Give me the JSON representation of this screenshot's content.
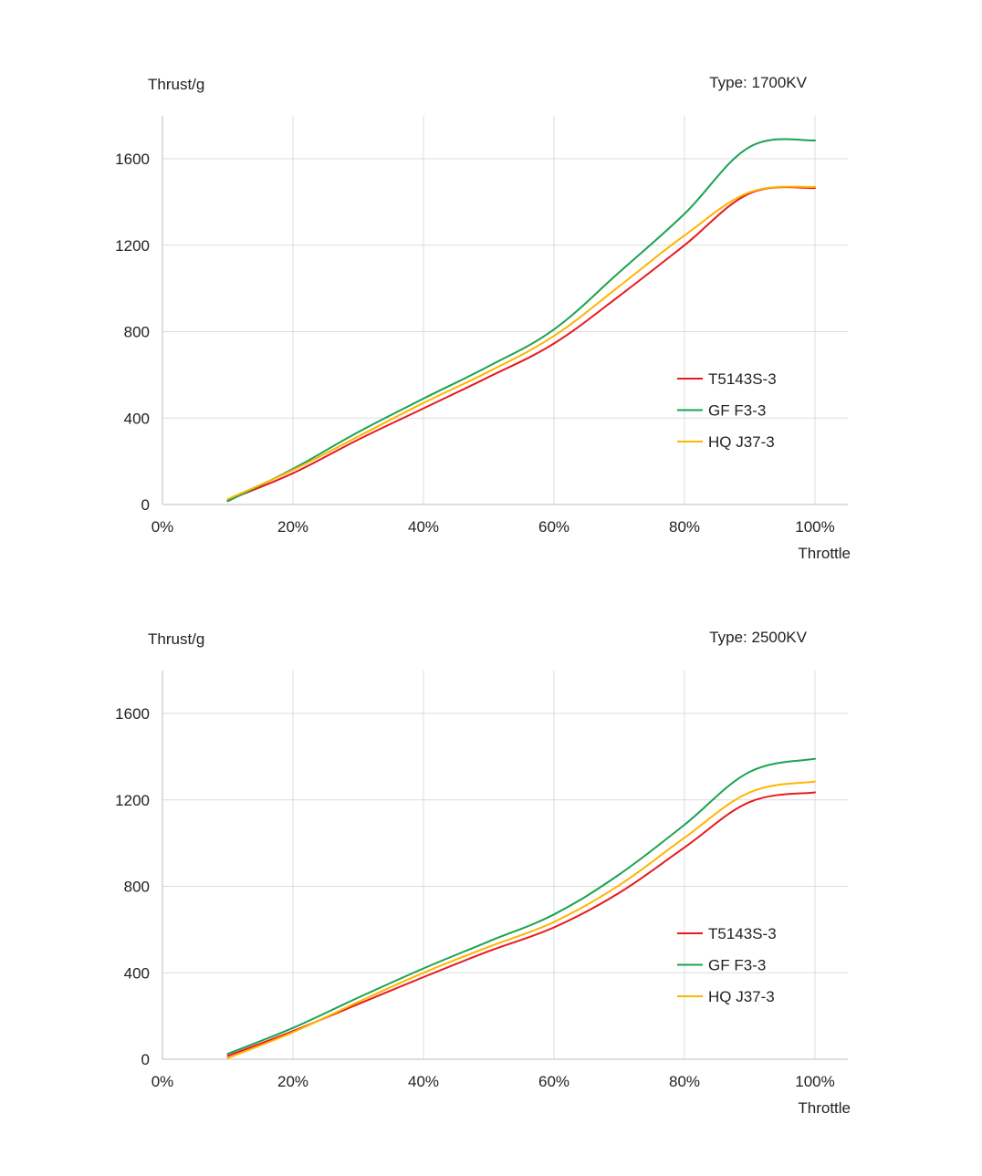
{
  "chart_data": [
    {
      "type": "line",
      "title": "",
      "ylabel": "Thrust/g",
      "xlabel": "Throttle",
      "annotation": "Type: 1700KV",
      "x_ticks": [
        "0%",
        "20%",
        "40%",
        "60%",
        "80%",
        "100%"
      ],
      "y_ticks": [
        "0",
        "400",
        "800",
        "1200",
        "1600"
      ],
      "xlim": [
        0,
        100
      ],
      "ylim": [
        0,
        1800
      ],
      "grid": true,
      "legend_position": "right",
      "x": [
        10,
        20,
        30,
        40,
        50,
        60,
        70,
        80,
        90,
        100
      ],
      "series": [
        {
          "name": "T5143S-3",
          "color": "#e8191f",
          "values": [
            20,
            145,
            300,
            445,
            590,
            745,
            965,
            1200,
            1440,
            1465
          ]
        },
        {
          "name": "GF F3-3",
          "color": "#1aa351",
          "values": [
            15,
            165,
            335,
            490,
            640,
            810,
            1075,
            1345,
            1655,
            1685
          ]
        },
        {
          "name": "HQ J37-3",
          "color": "#ffb400",
          "values": [
            25,
            160,
            315,
            470,
            615,
            780,
            1010,
            1245,
            1445,
            1470
          ]
        }
      ]
    },
    {
      "type": "line",
      "title": "",
      "ylabel": "Thrust/g",
      "xlabel": "Throttle",
      "annotation": "Type: 2500KV",
      "x_ticks": [
        "0%",
        "20%",
        "40%",
        "60%",
        "80%",
        "100%"
      ],
      "y_ticks": [
        "0",
        "400",
        "800",
        "1200",
        "1600"
      ],
      "xlim": [
        0,
        100
      ],
      "ylim": [
        0,
        1800
      ],
      "grid": true,
      "legend_position": "right",
      "x": [
        10,
        20,
        30,
        40,
        50,
        60,
        70,
        80,
        90,
        100
      ],
      "series": [
        {
          "name": "T5143S-3",
          "color": "#e8191f",
          "values": [
            15,
            130,
            255,
            380,
            500,
            610,
            770,
            980,
            1190,
            1235
          ]
        },
        {
          "name": "GF F3-3",
          "color": "#1aa351",
          "values": [
            25,
            145,
            285,
            420,
            545,
            670,
            855,
            1085,
            1330,
            1390
          ]
        },
        {
          "name": "HQ J37-3",
          "color": "#ffb400",
          "values": [
            5,
            125,
            265,
            400,
            520,
            635,
            805,
            1025,
            1235,
            1285
          ]
        }
      ]
    }
  ]
}
